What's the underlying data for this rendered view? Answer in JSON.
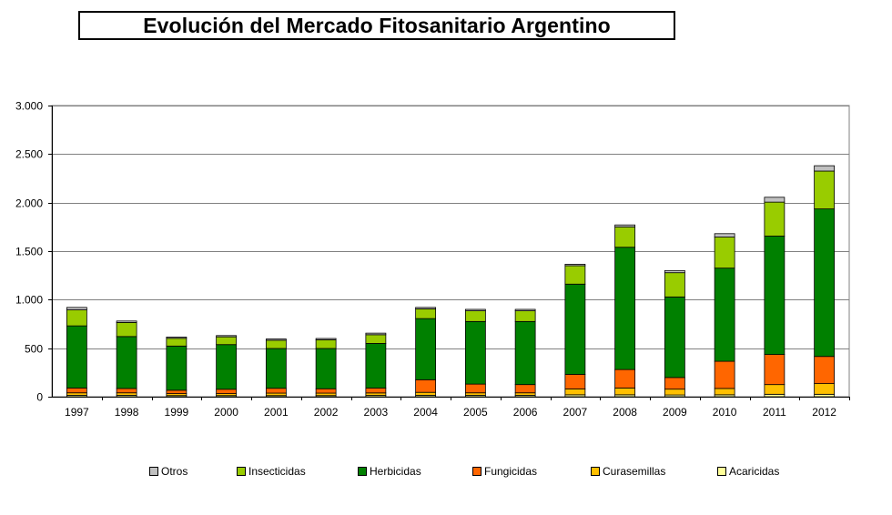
{
  "title": "Evolución del Mercado Fitosanitario Argentino",
  "chart_data": {
    "type": "bar",
    "stacked": true,
    "title": "Evolución del Mercado Fitosanitario Argentino",
    "xlabel": "",
    "ylabel": "",
    "ylim": [
      0,
      3000
    ],
    "yticks": [
      0,
      500,
      1000,
      1500,
      2000,
      2500,
      3000
    ],
    "ytick_labels": [
      "0",
      "500",
      "1.000",
      "1.500",
      "2.000",
      "2.500",
      "3.000"
    ],
    "grid": true,
    "legend_position": "bottom",
    "categories": [
      "1997",
      "1998",
      "1999",
      "2000",
      "2001",
      "2002",
      "2003",
      "2004",
      "2005",
      "2006",
      "2007",
      "2008",
      "2009",
      "2010",
      "2011",
      "2012"
    ],
    "series": [
      {
        "name": "Acaricidas",
        "color": "#ffff99",
        "values": [
          15,
          15,
          12,
          12,
          12,
          12,
          14,
          15,
          15,
          15,
          20,
          20,
          18,
          20,
          25,
          25
        ]
      },
      {
        "name": "Curasemillas",
        "color": "#ffc000",
        "values": [
          25,
          25,
          20,
          20,
          25,
          25,
          25,
          30,
          25,
          25,
          60,
          70,
          60,
          65,
          100,
          110
        ]
      },
      {
        "name": "Fungicidas",
        "color": "#ff6600",
        "values": [
          50,
          45,
          35,
          45,
          50,
          45,
          50,
          130,
          90,
          85,
          150,
          190,
          120,
          280,
          310,
          280
        ]
      },
      {
        "name": "Herbicidas",
        "color": "#008000",
        "values": [
          640,
          535,
          455,
          460,
          410,
          415,
          460,
          630,
          645,
          650,
          930,
          1260,
          830,
          960,
          1220,
          1520
        ]
      },
      {
        "name": "Insecticidas",
        "color": "#99cc00",
        "values": [
          165,
          145,
          80,
          80,
          85,
          90,
          90,
          100,
          110,
          110,
          190,
          210,
          250,
          320,
          350,
          390
        ]
      },
      {
        "name": "Otros",
        "color": "#c0c0c0",
        "values": [
          25,
          15,
          13,
          13,
          13,
          13,
          16,
          15,
          15,
          15,
          15,
          20,
          22,
          35,
          50,
          55
        ]
      }
    ]
  },
  "legend": {
    "items": [
      {
        "name": "Otros",
        "color": "#c0c0c0"
      },
      {
        "name": "Insecticidas",
        "color": "#99cc00"
      },
      {
        "name": "Herbicidas",
        "color": "#008000"
      },
      {
        "name": "Fungicidas",
        "color": "#ff6600"
      },
      {
        "name": "Curasemillas",
        "color": "#ffc000"
      },
      {
        "name": "Acaricidas",
        "color": "#ffff99"
      }
    ]
  }
}
